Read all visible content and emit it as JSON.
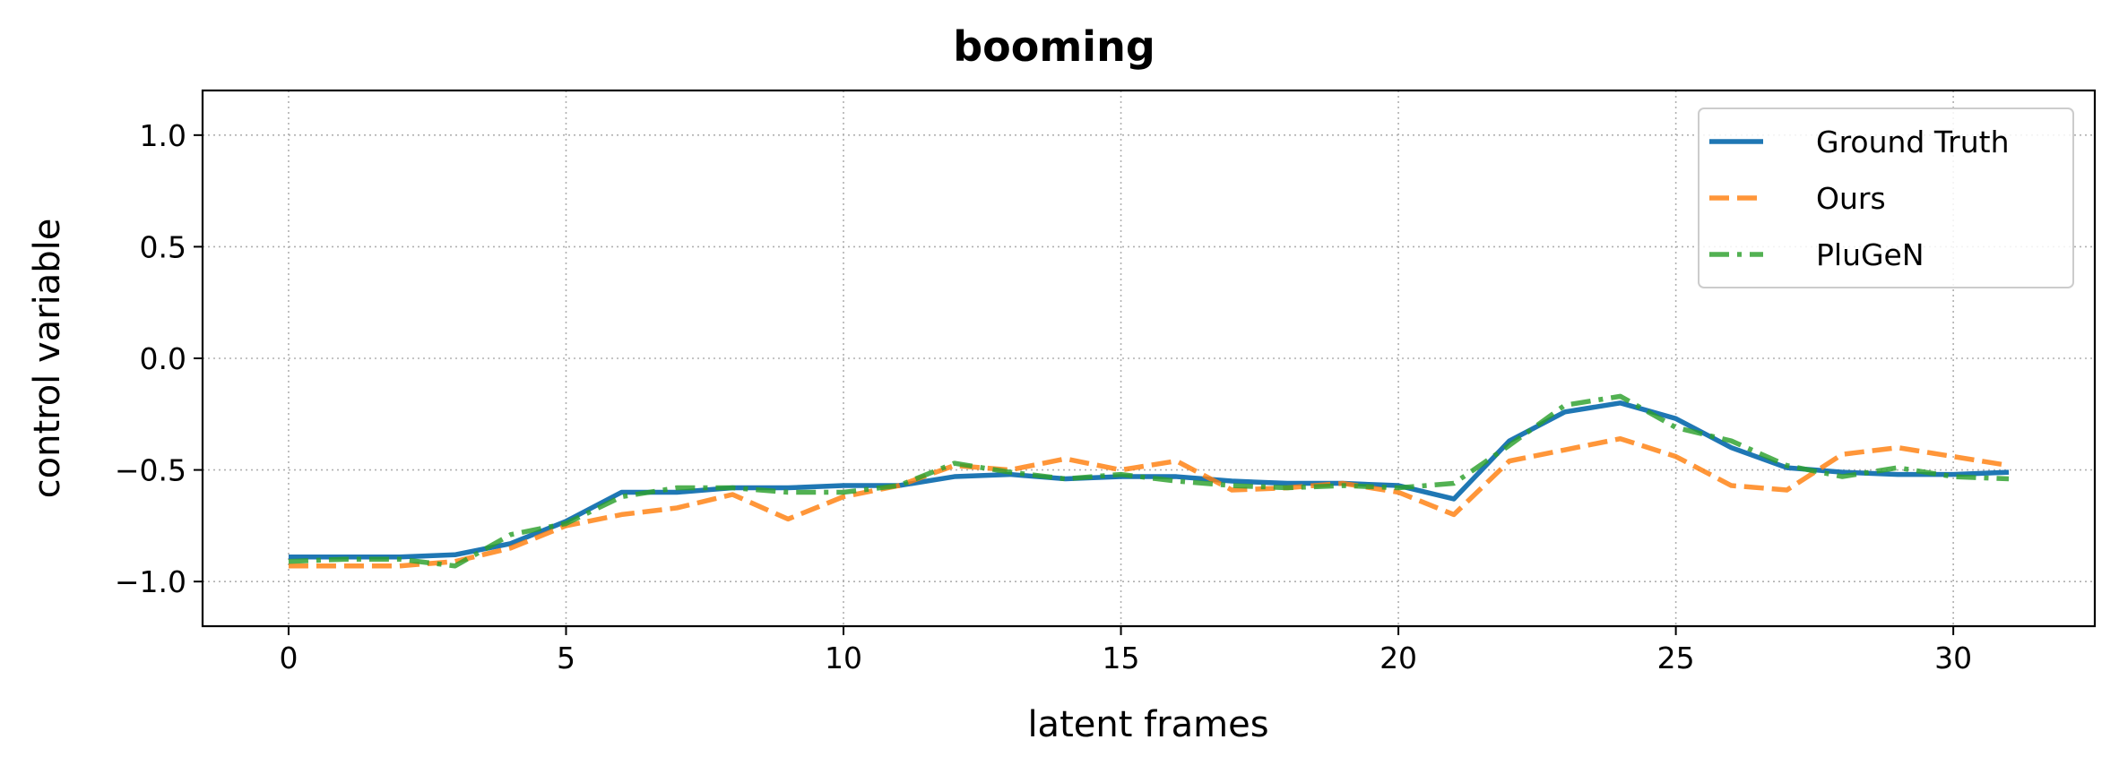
{
  "chart_data": {
    "type": "line",
    "title": "booming",
    "xlabel": "latent frames",
    "ylabel": "control variable",
    "xlim": [
      -1.55,
      32.55
    ],
    "ylim": [
      -1.2,
      1.2
    ],
    "xticks": [
      0,
      5,
      10,
      15,
      20,
      25,
      30
    ],
    "yticks": [
      1.0,
      0.5,
      0.0,
      -0.5,
      -1.0
    ],
    "xtick_labels": [
      "0",
      "5",
      "10",
      "15",
      "20",
      "25",
      "30"
    ],
    "ytick_labels": [
      "1.0",
      "0.5",
      "0.0",
      "−0.5",
      "−1.0"
    ],
    "grid": true,
    "legend_position": "top-right",
    "x": [
      0,
      1,
      2,
      3,
      4,
      5,
      6,
      7,
      8,
      9,
      10,
      11,
      12,
      13,
      14,
      15,
      16,
      17,
      18,
      19,
      20,
      21,
      22,
      23,
      24,
      25,
      26,
      27,
      28,
      29,
      30,
      31
    ],
    "series": [
      {
        "name": "Ground Truth",
        "color": "#1f77b4",
        "style": "solid",
        "values": [
          -0.89,
          -0.89,
          -0.89,
          -0.88,
          -0.83,
          -0.73,
          -0.6,
          -0.6,
          -0.58,
          -0.58,
          -0.57,
          -0.57,
          -0.53,
          -0.52,
          -0.54,
          -0.53,
          -0.53,
          -0.55,
          -0.56,
          -0.56,
          -0.57,
          -0.63,
          -0.37,
          -0.24,
          -0.2,
          -0.27,
          -0.4,
          -0.49,
          -0.51,
          -0.52,
          -0.52,
          -0.51
        ]
      },
      {
        "name": "Ours",
        "color": "#ff7f0e",
        "style": "dashed",
        "values": [
          -0.93,
          -0.93,
          -0.93,
          -0.91,
          -0.85,
          -0.75,
          -0.7,
          -0.67,
          -0.61,
          -0.72,
          -0.62,
          -0.57,
          -0.48,
          -0.5,
          -0.45,
          -0.5,
          -0.46,
          -0.59,
          -0.58,
          -0.56,
          -0.6,
          -0.7,
          -0.46,
          -0.41,
          -0.36,
          -0.44,
          -0.57,
          -0.59,
          -0.43,
          -0.4,
          -0.44,
          -0.48
        ]
      },
      {
        "name": "PluGeN",
        "color": "#2ca02c",
        "style": "dashdot",
        "values": [
          -0.91,
          -0.9,
          -0.9,
          -0.93,
          -0.79,
          -0.74,
          -0.62,
          -0.58,
          -0.58,
          -0.6,
          -0.6,
          -0.57,
          -0.47,
          -0.51,
          -0.54,
          -0.52,
          -0.55,
          -0.57,
          -0.58,
          -0.57,
          -0.58,
          -0.56,
          -0.39,
          -0.21,
          -0.17,
          -0.31,
          -0.37,
          -0.48,
          -0.53,
          -0.49,
          -0.53,
          -0.54
        ]
      }
    ]
  }
}
